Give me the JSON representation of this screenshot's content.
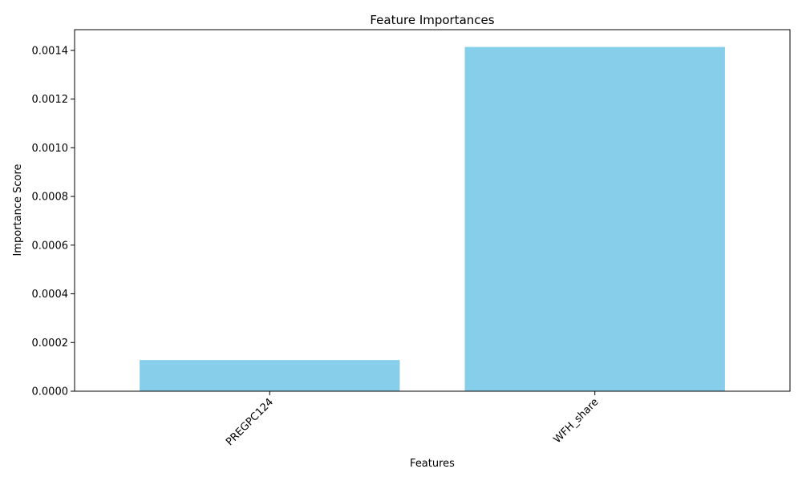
{
  "chart_data": {
    "type": "bar",
    "title": "Feature Importances",
    "xlabel": "Features",
    "ylabel": "Importance Score",
    "categories": [
      "PREGPC124",
      "WFH_share"
    ],
    "values": [
      0.000128,
      0.001414
    ],
    "ylim": [
      0,
      0.001485
    ],
    "yticks": [
      0.0,
      0.0002,
      0.0004,
      0.0006,
      0.0008,
      0.001,
      0.0012,
      0.0014
    ],
    "ytick_labels": [
      "0.0000",
      "0.0002",
      "0.0004",
      "0.0006",
      "0.0008",
      "0.0010",
      "0.0012",
      "0.0014"
    ],
    "xtick_rotation_deg": 45,
    "bar_color": "#87ceeb",
    "grid": false,
    "legend": "none"
  }
}
